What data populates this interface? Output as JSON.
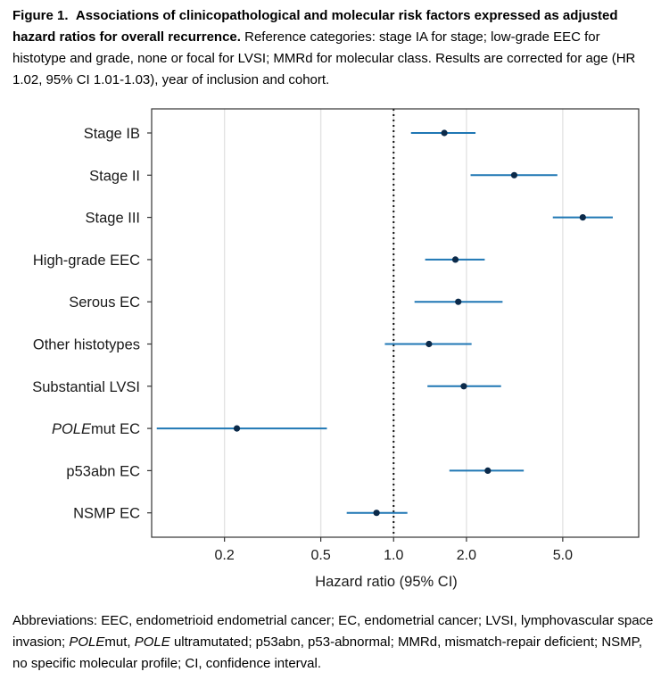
{
  "caption": {
    "figure_label": "Figure 1.",
    "title": "Associations of clinicopathological and molecular risk factors expressed as adjusted hazard ratios for overall recurrence.",
    "text": "Reference categories: stage IA for stage; low-grade EEC for histotype and grade, none or focal for LVSI; MMRd for molecular class. Results are corrected for age (HR 1.02, 95% CI 1.01-1.03), year of inclusion and cohort."
  },
  "footnote": {
    "part1": "Abbreviations: EEC, endometrioid endometrial cancer; EC, endometrial cancer; LVSI, lymphovascular space invasion; ",
    "pole_italic_1": "POLE",
    "part2": "mut, ",
    "pole_italic_2": "POLE",
    "part3": " ultramutated; p53abn, p53-abnormal; MMRd, mismatch-repair deficient; NSMP, no specific molecular profile; CI, confidence interval."
  },
  "chart_data": {
    "type": "forest",
    "xlabel": "Hazard ratio (95% CI)",
    "xscale": "log",
    "xlim": [
      0.1,
      10.3
    ],
    "xticks": [
      0.2,
      0.5,
      1.0,
      2.0,
      5.0
    ],
    "xtick_labels": [
      "0.2",
      "0.5",
      "1.0",
      "2.0",
      "5.0"
    ],
    "reference_line": 1.0,
    "grid": "vertical major",
    "point_color": "#0b2a4a",
    "ci_color": "#1f77b4",
    "rows": [
      {
        "label": "Stage IB",
        "label_italic": "",
        "hr": 1.62,
        "lo": 1.18,
        "hi": 2.18
      },
      {
        "label": "Stage II",
        "label_italic": "",
        "hr": 3.15,
        "lo": 2.08,
        "hi": 4.75
      },
      {
        "label": "Stage III",
        "label_italic": "",
        "hr": 6.05,
        "lo": 4.55,
        "hi": 8.05
      },
      {
        "label": "High-grade EEC",
        "label_italic": "",
        "hr": 1.8,
        "lo": 1.35,
        "hi": 2.38
      },
      {
        "label": "Serous EC",
        "label_italic": "",
        "hr": 1.85,
        "lo": 1.22,
        "hi": 2.82
      },
      {
        "label": "Other histotypes",
        "label_italic": "",
        "hr": 1.4,
        "lo": 0.92,
        "hi": 2.1
      },
      {
        "label": "Substantial LVSI",
        "label_italic": "",
        "hr": 1.95,
        "lo": 1.38,
        "hi": 2.78
      },
      {
        "label": "mut EC",
        "label_italic": "POLE",
        "hr": 0.225,
        "lo": 0.105,
        "hi": 0.53
      },
      {
        "label": "p53abn EC",
        "label_italic": "",
        "hr": 2.45,
        "lo": 1.7,
        "hi": 3.45
      },
      {
        "label": "NSMP EC",
        "label_italic": "",
        "hr": 0.85,
        "lo": 0.64,
        "hi": 1.14
      }
    ]
  }
}
